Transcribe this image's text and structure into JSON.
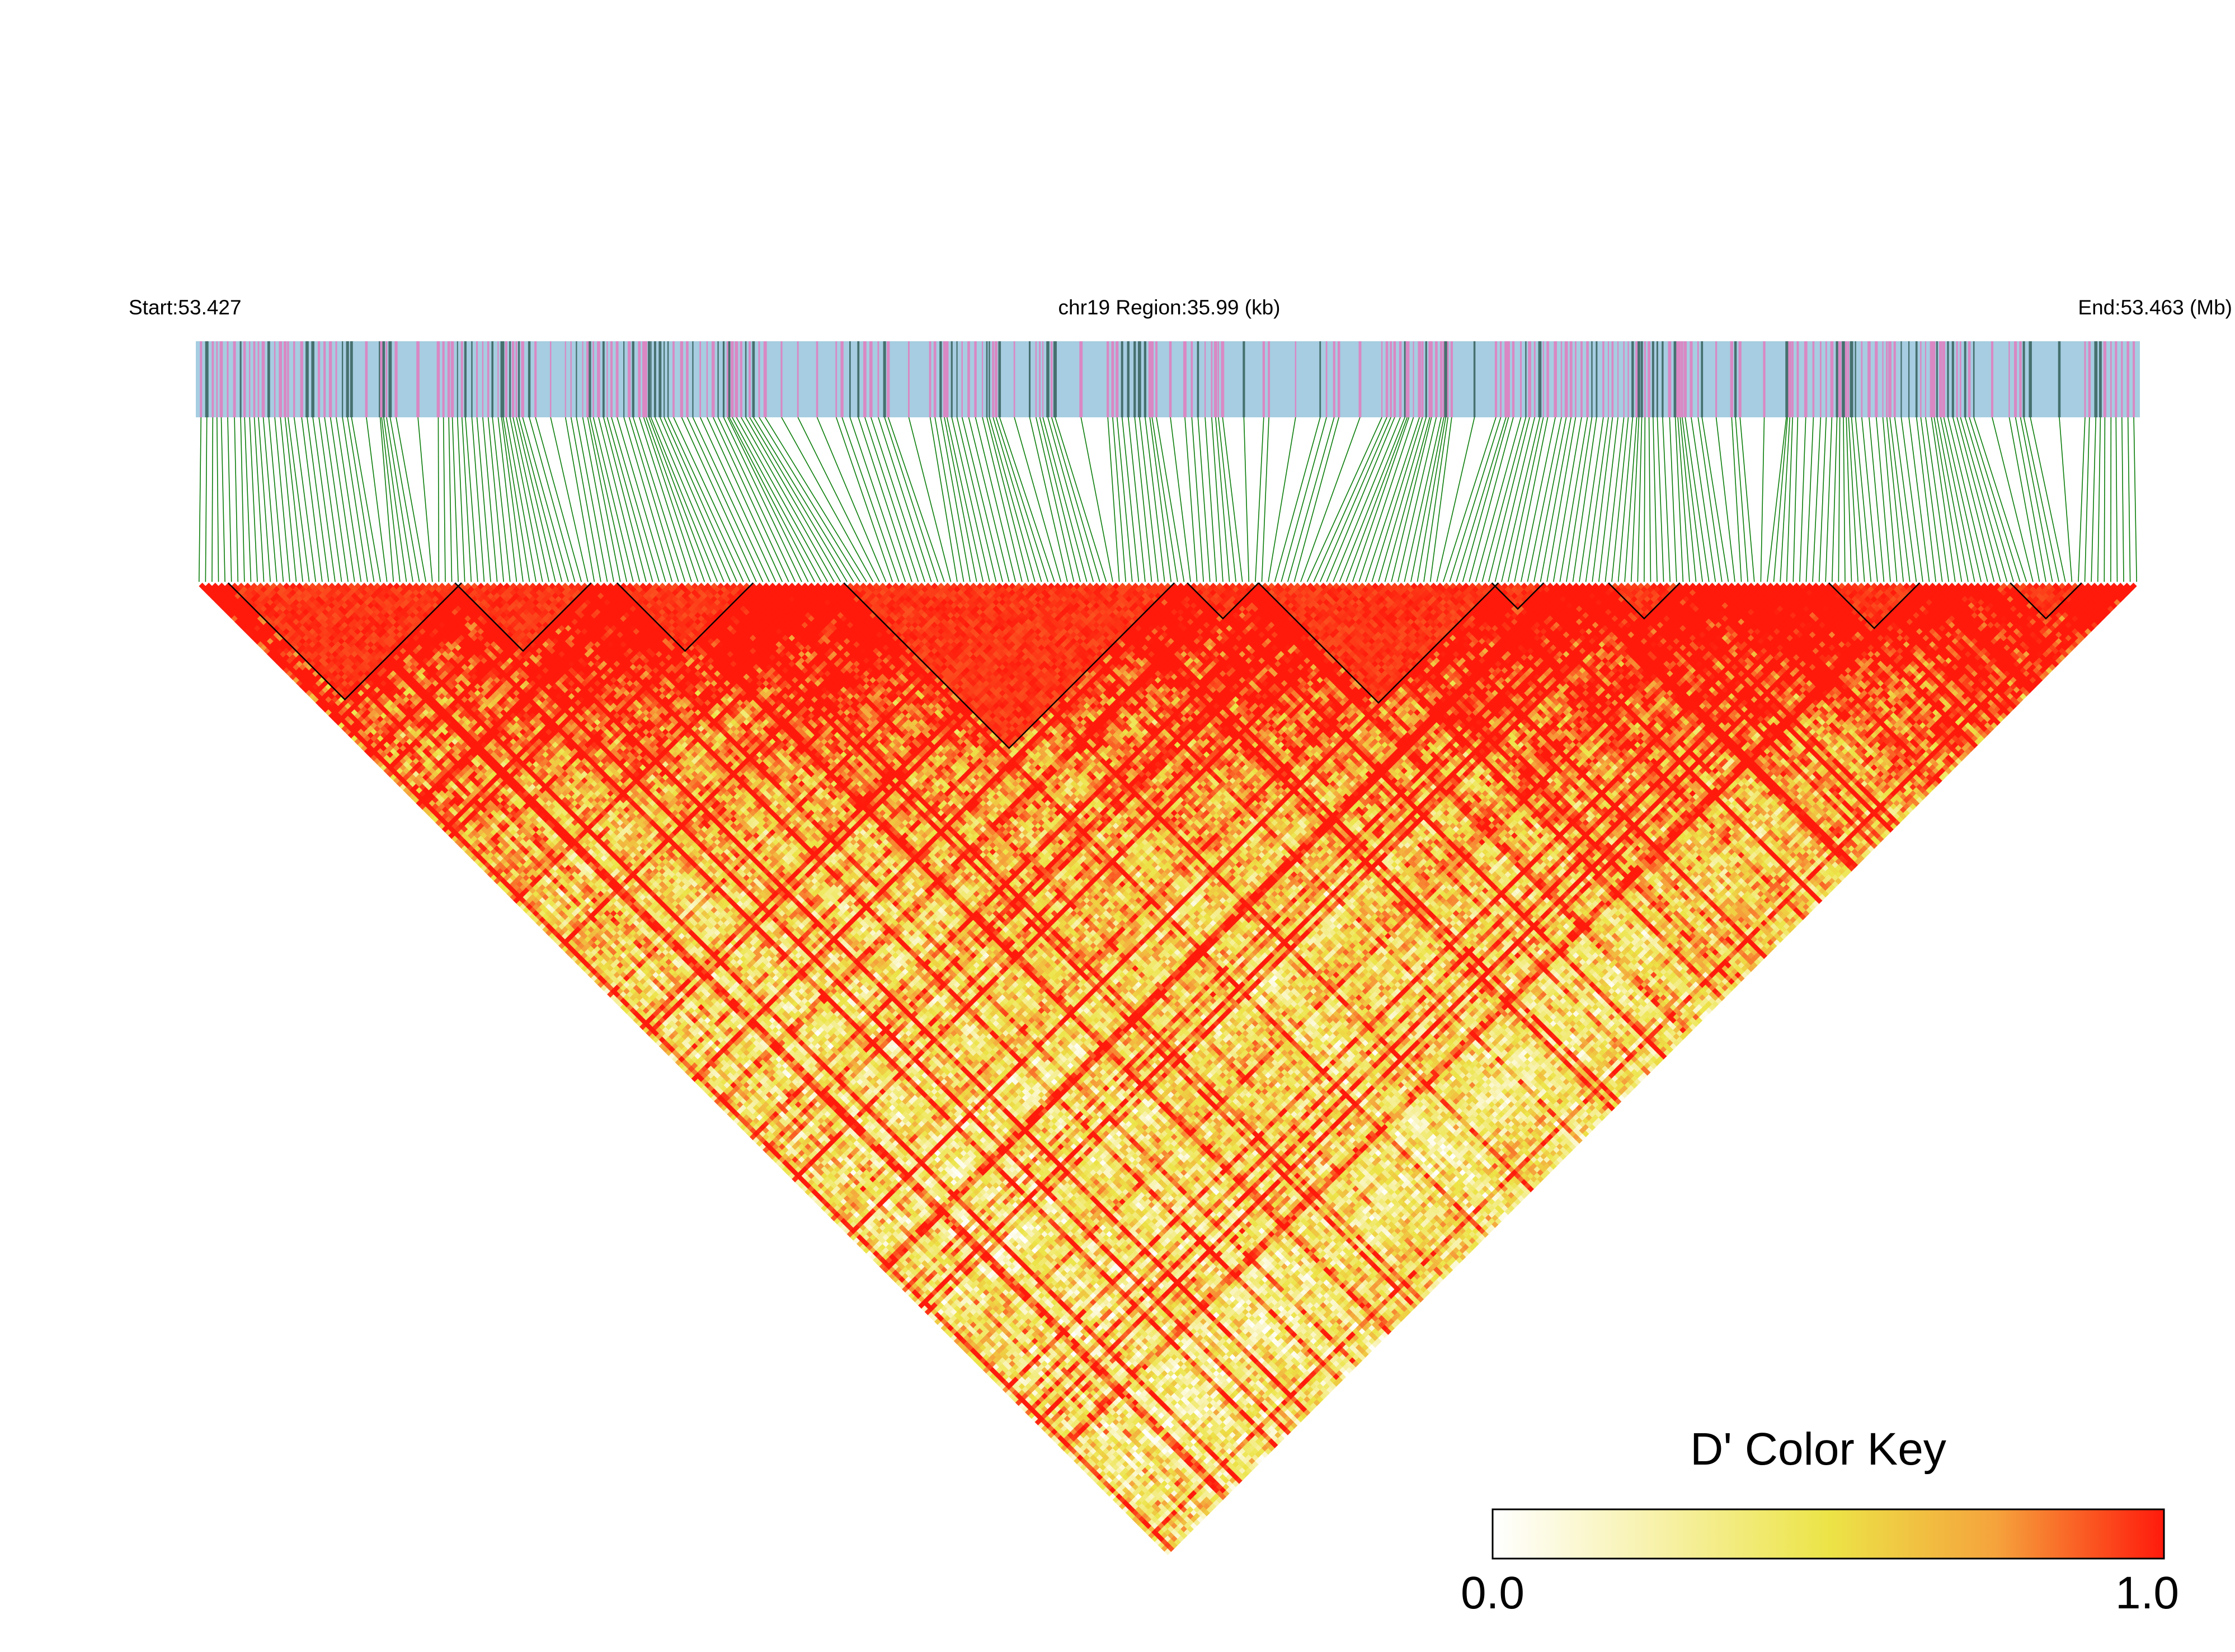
{
  "chart_data": {
    "type": "heatmap",
    "subtype": "linkage-disequilibrium triangle",
    "title": "",
    "region_label": "chr19 Region:35.99 (kb)",
    "start_label": "Start:53.427",
    "end_label": "End:53.463 (Mb)",
    "chromosome": "chr19",
    "start_mb": 53.427,
    "end_mb": 53.463,
    "region_kb": 35.99,
    "snp_count": 300,
    "metric": "D'",
    "value_range": [
      0.0,
      1.0
    ],
    "high_ld_blocks": [
      {
        "from_snp": 5,
        "to_snp": 40
      },
      {
        "from_snp": 40,
        "to_snp": 60
      },
      {
        "from_snp": 65,
        "to_snp": 85
      },
      {
        "from_snp": 100,
        "to_snp": 150
      },
      {
        "from_snp": 153,
        "to_snp": 163
      },
      {
        "from_snp": 164,
        "to_snp": 200
      },
      {
        "from_snp": 200,
        "to_snp": 207
      },
      {
        "from_snp": 218,
        "to_snp": 228
      },
      {
        "from_snp": 252,
        "to_snp": 265
      },
      {
        "from_snp": 280,
        "to_snp": 290
      }
    ],
    "track_colors": {
      "bar_background": "#a6cde1",
      "snp_tick_pink": "#d988c4",
      "snp_tick_dark": "#45706e",
      "connector": "#0a7d0a"
    },
    "color_key": {
      "title": "D' Color Key",
      "min_label": "0.0",
      "max_label": "1.0",
      "colors": [
        "#ffffff",
        "#f7f1a8",
        "#ece447",
        "#f5a33c",
        "#ff1a0c"
      ]
    }
  }
}
